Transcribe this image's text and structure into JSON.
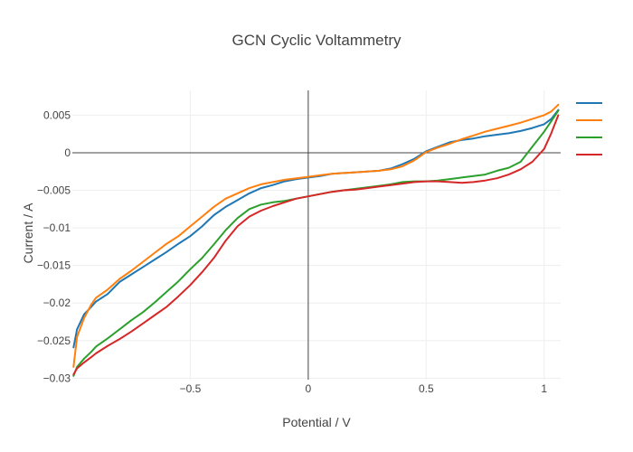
{
  "chart_data": {
    "type": "line",
    "title": "GCN Cyclic Voltammetry",
    "xlabel": "Potential / V",
    "ylabel": "Current /  A",
    "xlim": [
      -1.0,
      1.07
    ],
    "ylim": [
      -0.0302,
      0.0083
    ],
    "x_ticks": [
      -0.5,
      0,
      0.5,
      1
    ],
    "x_tick_labels": [
      "−0.5",
      "0",
      "0.5",
      "1"
    ],
    "y_ticks": [
      0.005,
      0,
      -0.005,
      -0.01,
      -0.015,
      -0.02,
      -0.025,
      -0.03
    ],
    "y_tick_labels": [
      "0.005",
      "0",
      "−0.005",
      "−0.01",
      "−0.015",
      "−0.02",
      "−0.025",
      "−0.03"
    ],
    "grid": true,
    "legend_position": "top-right",
    "series": [
      {
        "color": "#1f77b4",
        "x": [
          -0.995,
          -0.98,
          -0.95,
          -0.92,
          -0.9,
          -0.85,
          -0.8,
          -0.75,
          -0.7,
          -0.65,
          -0.6,
          -0.55,
          -0.5,
          -0.45,
          -0.4,
          -0.35,
          -0.3,
          -0.25,
          -0.2,
          -0.15,
          -0.1,
          -0.05,
          0,
          0.05,
          0.1,
          0.15,
          0.2,
          0.25,
          0.3,
          0.35,
          0.4,
          0.45,
          0.5,
          0.55,
          0.6,
          0.65,
          0.7,
          0.75,
          0.8,
          0.85,
          0.9,
          0.95,
          1.0,
          1.03,
          1.06
        ],
        "y": [
          -0.0259,
          -0.0235,
          -0.0215,
          -0.0205,
          -0.0198,
          -0.0188,
          -0.0172,
          -0.0162,
          -0.0152,
          -0.0142,
          -0.0132,
          -0.0121,
          -0.0111,
          -0.0098,
          -0.0083,
          -0.0072,
          -0.0063,
          -0.0054,
          -0.0047,
          -0.0043,
          -0.0038,
          -0.0035,
          -0.0033,
          -0.0031,
          -0.0028,
          -0.0027,
          -0.0026,
          -0.0025,
          -0.0024,
          -0.0021,
          -0.0015,
          -0.0008,
          0.0002,
          0.0008,
          0.0014,
          0.0017,
          0.0019,
          0.0022,
          0.0024,
          0.0026,
          0.0029,
          0.0033,
          0.0038,
          0.0045,
          0.0057
        ]
      },
      {
        "color": "#ff7f0e",
        "x": [
          -0.995,
          -0.98,
          -0.95,
          -0.92,
          -0.9,
          -0.85,
          -0.8,
          -0.75,
          -0.7,
          -0.65,
          -0.6,
          -0.55,
          -0.5,
          -0.45,
          -0.4,
          -0.35,
          -0.3,
          -0.25,
          -0.2,
          -0.15,
          -0.1,
          -0.05,
          0,
          0.05,
          0.1,
          0.15,
          0.2,
          0.25,
          0.3,
          0.35,
          0.4,
          0.45,
          0.5,
          0.55,
          0.6,
          0.65,
          0.7,
          0.75,
          0.8,
          0.85,
          0.9,
          0.95,
          1.0,
          1.03,
          1.06
        ],
        "y": [
          -0.0285,
          -0.0245,
          -0.022,
          -0.0202,
          -0.0193,
          -0.0182,
          -0.0168,
          -0.0157,
          -0.0145,
          -0.0133,
          -0.0121,
          -0.0111,
          -0.0098,
          -0.0085,
          -0.0072,
          -0.0061,
          -0.0054,
          -0.0047,
          -0.0042,
          -0.0039,
          -0.0036,
          -0.0034,
          -0.0032,
          -0.003,
          -0.0028,
          -0.0027,
          -0.0026,
          -0.0025,
          -0.0024,
          -0.0022,
          -0.0018,
          -0.001,
          0.0001,
          0.0007,
          0.0012,
          0.0018,
          0.0023,
          0.0028,
          0.0032,
          0.0036,
          0.004,
          0.0045,
          0.005,
          0.0055,
          0.0064
        ]
      },
      {
        "color": "#2ca02c",
        "x": [
          -0.995,
          -0.98,
          -0.95,
          -0.92,
          -0.9,
          -0.85,
          -0.8,
          -0.75,
          -0.7,
          -0.65,
          -0.6,
          -0.55,
          -0.5,
          -0.45,
          -0.4,
          -0.35,
          -0.3,
          -0.25,
          -0.2,
          -0.15,
          -0.1,
          -0.05,
          0,
          0.05,
          0.1,
          0.15,
          0.2,
          0.25,
          0.3,
          0.35,
          0.4,
          0.45,
          0.5,
          0.55,
          0.6,
          0.65,
          0.7,
          0.75,
          0.8,
          0.85,
          0.9,
          0.95,
          1.0,
          1.03,
          1.06
        ],
        "y": [
          -0.0297,
          -0.0285,
          -0.0274,
          -0.0265,
          -0.0258,
          -0.0247,
          -0.0235,
          -0.0223,
          -0.0212,
          -0.0199,
          -0.0185,
          -0.0171,
          -0.0155,
          -0.014,
          -0.0122,
          -0.0103,
          -0.0087,
          -0.0075,
          -0.0069,
          -0.0066,
          -0.0064,
          -0.0061,
          -0.0058,
          -0.0055,
          -0.0052,
          -0.005,
          -0.0048,
          -0.0046,
          -0.0044,
          -0.0042,
          -0.0039,
          -0.0038,
          -0.0038,
          -0.0037,
          -0.0035,
          -0.0033,
          -0.0031,
          -0.0029,
          -0.0024,
          -0.002,
          -0.0012,
          0.0008,
          0.0028,
          0.0042,
          0.0056
        ]
      },
      {
        "color": "#d62728",
        "x": [
          -0.995,
          -0.98,
          -0.95,
          -0.92,
          -0.9,
          -0.85,
          -0.8,
          -0.75,
          -0.7,
          -0.65,
          -0.6,
          -0.55,
          -0.5,
          -0.45,
          -0.4,
          -0.35,
          -0.3,
          -0.25,
          -0.2,
          -0.15,
          -0.1,
          -0.05,
          0,
          0.05,
          0.1,
          0.15,
          0.2,
          0.25,
          0.3,
          0.35,
          0.4,
          0.45,
          0.5,
          0.55,
          0.6,
          0.65,
          0.7,
          0.75,
          0.8,
          0.85,
          0.9,
          0.95,
          1.0,
          1.03,
          1.06
        ],
        "y": [
          -0.0295,
          -0.0287,
          -0.0279,
          -0.0272,
          -0.0267,
          -0.0257,
          -0.0248,
          -0.0238,
          -0.0227,
          -0.0216,
          -0.0205,
          -0.0191,
          -0.0176,
          -0.0159,
          -0.014,
          -0.0117,
          -0.0098,
          -0.0085,
          -0.0077,
          -0.0071,
          -0.0066,
          -0.0061,
          -0.0058,
          -0.0055,
          -0.0052,
          -0.005,
          -0.0049,
          -0.0047,
          -0.0045,
          -0.0043,
          -0.0041,
          -0.0039,
          -0.0038,
          -0.0038,
          -0.0039,
          -0.004,
          -0.0039,
          -0.0037,
          -0.0034,
          -0.0029,
          -0.0022,
          -0.0012,
          0.0005,
          0.0026,
          0.005
        ]
      }
    ]
  }
}
